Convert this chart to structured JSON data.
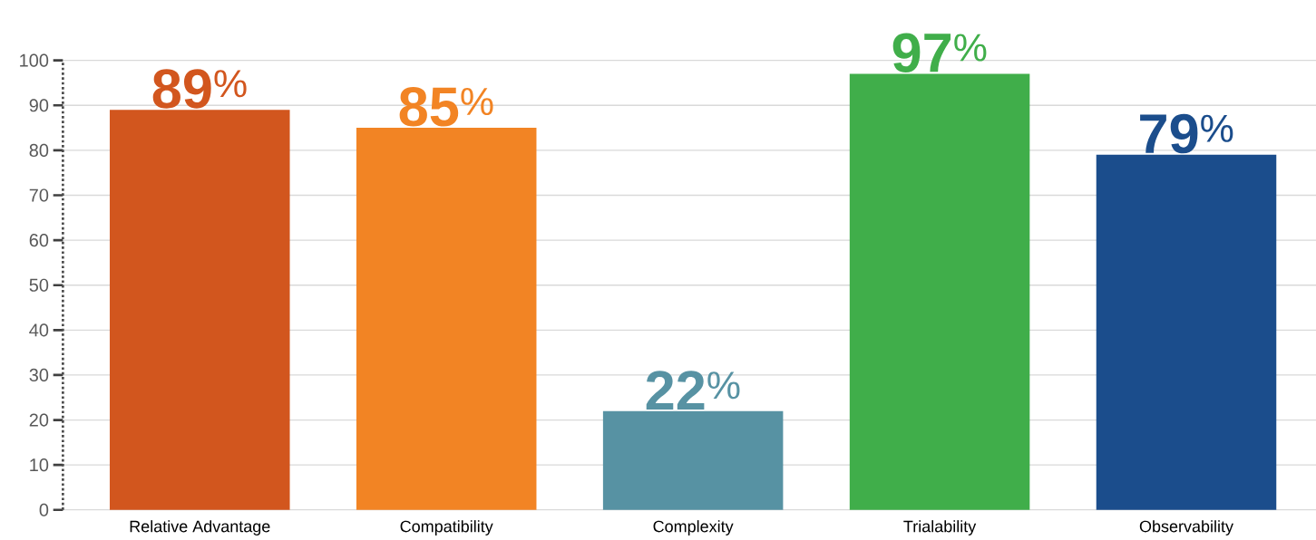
{
  "chart_data": {
    "type": "bar",
    "categories": [
      "Relative Advantage",
      "Compatibility",
      "Complexity",
      "Trialability",
      "Observability"
    ],
    "values": [
      89,
      85,
      22,
      97,
      79
    ],
    "colors": [
      "#d2561e",
      "#f28424",
      "#5792a3",
      "#40ae4a",
      "#1b4d8c"
    ],
    "value_labels": [
      "**89**$^{%}$",
      "**85**$^{%}$",
      "**22**$^{%}$",
      "**97**$^{%}$",
      "**79**$^{%}$"
    ],
    "ylim": [
      0,
      100
    ],
    "yticks": [
      0,
      10,
      20,
      30,
      40,
      50,
      60,
      70,
      80,
      90,
      100
    ],
    "grid": "y"
  }
}
